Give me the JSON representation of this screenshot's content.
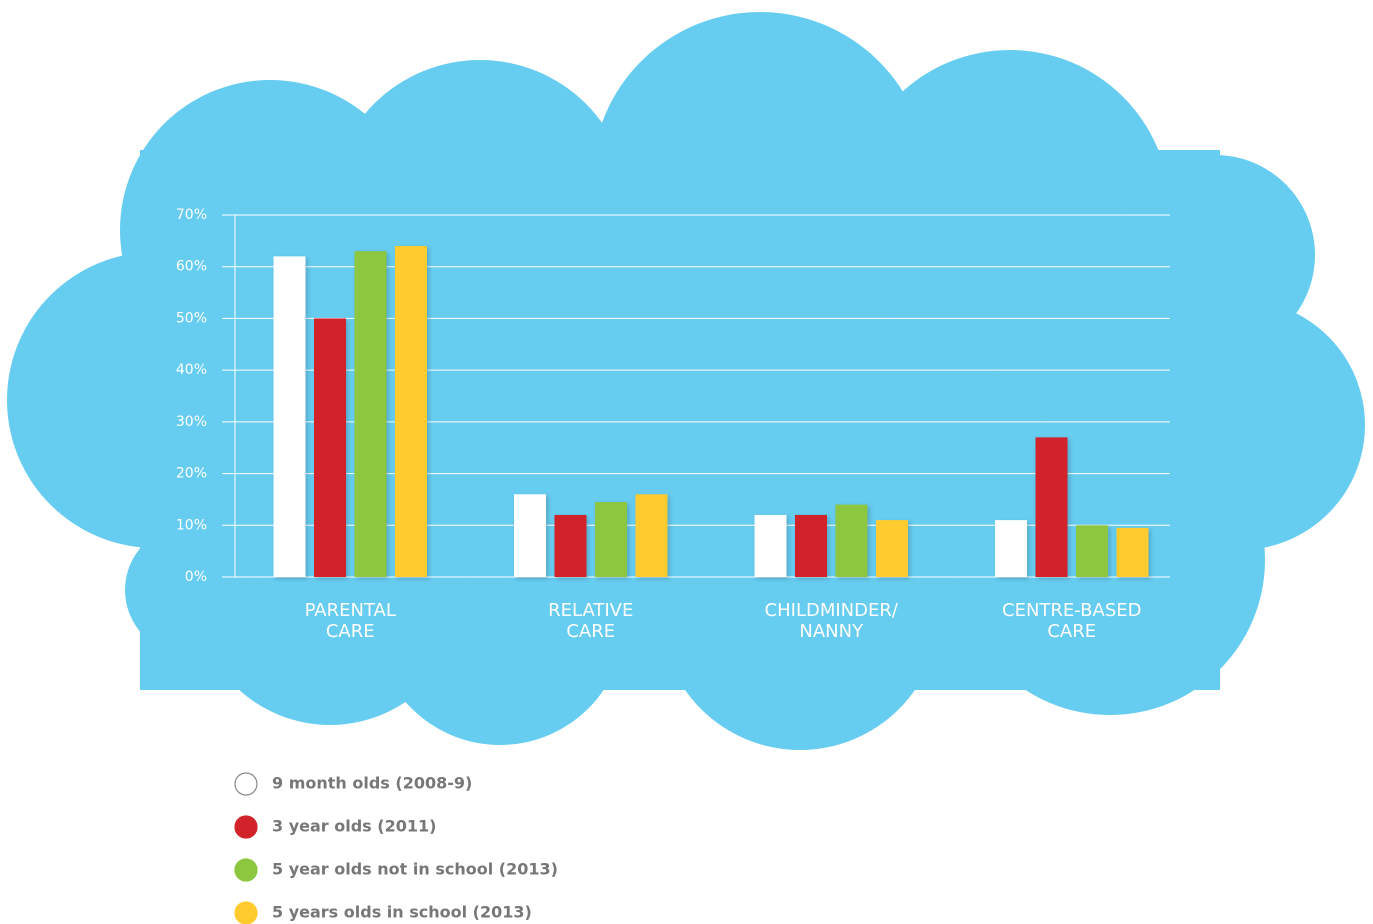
{
  "chart_data": {
    "type": "bar",
    "categories": [
      "PARENTAL\nCARE",
      "RELATIVE\nCARE",
      "CHILDMINDER/\nNANNY",
      "CENTRE-BASED\nCARE"
    ],
    "series": [
      {
        "name": "9 month olds (2008-9)",
        "color": "#ffffff",
        "values": [
          62,
          16,
          12,
          11
        ]
      },
      {
        "name": "3 year olds (2011)",
        "color": "#d2232a",
        "values": [
          50,
          12,
          12,
          27
        ]
      },
      {
        "name": "5 year olds not in school (2013)",
        "color": "#8dc63f",
        "values": [
          63,
          14.5,
          14,
          10
        ]
      },
      {
        "name": "5 years olds in school (2013)",
        "color": "#ffcb2f",
        "values": [
          64,
          16,
          11,
          9.5
        ]
      }
    ],
    "ylim": [
      0,
      70
    ],
    "yticks": [
      {
        "value": 0,
        "label": "0%"
      },
      {
        "value": 10,
        "label": "10%"
      },
      {
        "value": 20,
        "label": "20%"
      },
      {
        "value": 30,
        "label": "30%"
      },
      {
        "value": 40,
        "label": "40%"
      },
      {
        "value": 50,
        "label": "50%"
      },
      {
        "value": 60,
        "label": "60%"
      },
      {
        "value": 70,
        "label": "70%"
      }
    ],
    "grid": true
  }
}
